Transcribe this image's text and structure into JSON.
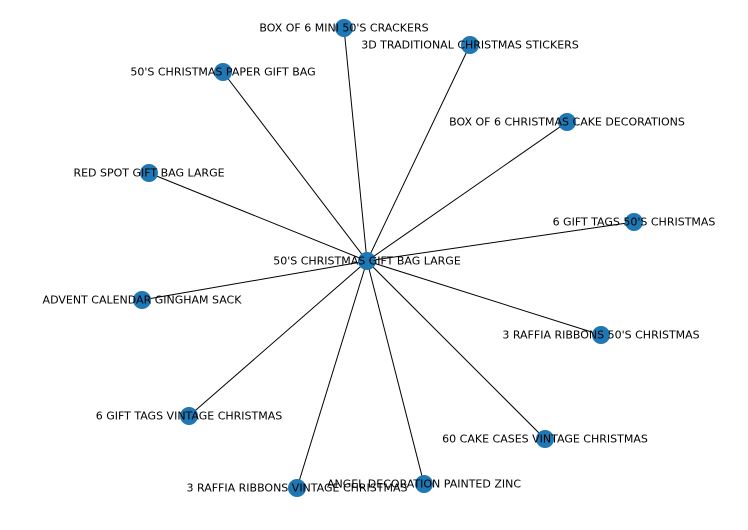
{
  "graph": {
    "node_color": "#1f77b4",
    "edge_color": "#000000",
    "center": "50'S CHRISTMAS GIFT BAG LARGE",
    "nodes": [
      "50'S CHRISTMAS GIFT BAG LARGE",
      "BOX OF 6 MINI 50'S CRACKERS",
      "3D TRADITIONAL CHRISTMAS STICKERS",
      "50'S CHRISTMAS PAPER GIFT BAG",
      "BOX OF 6 CHRISTMAS CAKE DECORATIONS",
      "RED SPOT GIFT BAG LARGE",
      "6 GIFT TAGS 50'S CHRISTMAS",
      "ADVENT CALENDAR GINGHAM SACK",
      "3 RAFFIA RIBBONS 50'S CHRISTMAS",
      "6 GIFT TAGS VINTAGE CHRISTMAS",
      "60 CAKE CASES VINTAGE CHRISTMAS",
      "ANGEL DECORATION PAINTED ZINC",
      "3 RAFFIA RIBBONS VINTAGE CHRISTMAS"
    ],
    "edges": [
      [
        "50'S CHRISTMAS GIFT BAG LARGE",
        "BOX OF 6 MINI 50'S CRACKERS"
      ],
      [
        "50'S CHRISTMAS GIFT BAG LARGE",
        "3D TRADITIONAL CHRISTMAS STICKERS"
      ],
      [
        "50'S CHRISTMAS GIFT BAG LARGE",
        "50'S CHRISTMAS PAPER GIFT BAG"
      ],
      [
        "50'S CHRISTMAS GIFT BAG LARGE",
        "BOX OF 6 CHRISTMAS CAKE DECORATIONS"
      ],
      [
        "50'S CHRISTMAS GIFT BAG LARGE",
        "RED SPOT GIFT BAG LARGE"
      ],
      [
        "50'S CHRISTMAS GIFT BAG LARGE",
        "6 GIFT TAGS 50'S CHRISTMAS"
      ],
      [
        "50'S CHRISTMAS GIFT BAG LARGE",
        "ADVENT CALENDAR GINGHAM SACK"
      ],
      [
        "50'S CHRISTMAS GIFT BAG LARGE",
        "3 RAFFIA RIBBONS 50'S CHRISTMAS"
      ],
      [
        "50'S CHRISTMAS GIFT BAG LARGE",
        "6 GIFT TAGS VINTAGE CHRISTMAS"
      ],
      [
        "50'S CHRISTMAS GIFT BAG LARGE",
        "60 CAKE CASES VINTAGE CHRISTMAS"
      ],
      [
        "50'S CHRISTMAS GIFT BAG LARGE",
        "ANGEL DECORATION PAINTED ZINC"
      ],
      [
        "50'S CHRISTMAS GIFT BAG LARGE",
        "3 RAFFIA RIBBONS VINTAGE CHRISTMAS"
      ]
    ]
  }
}
